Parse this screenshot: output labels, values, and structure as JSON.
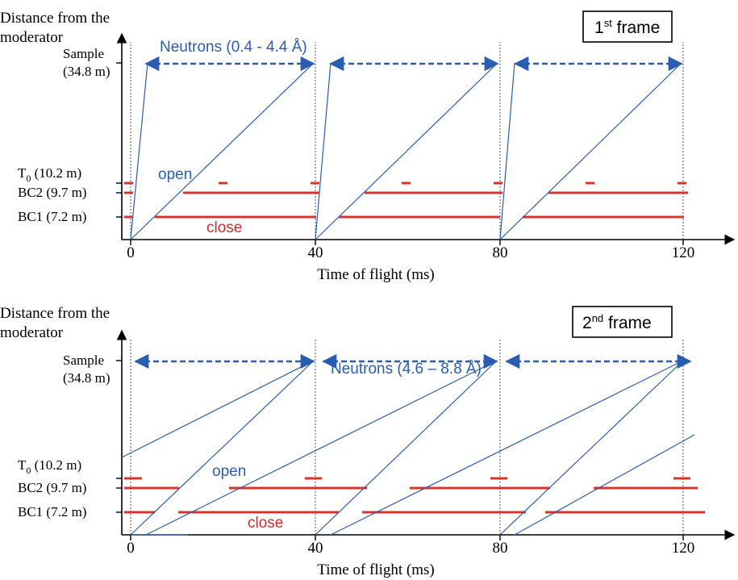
{
  "colors": {
    "blue": "#2a5db0",
    "red": "#d9342b",
    "axis": "#000000"
  },
  "panels": [
    {
      "id": "frame1",
      "frame_label": {
        "prefix": "1",
        "sup": "st",
        "suffix": " frame"
      },
      "y_title": [
        "Distance from the",
        "moderator"
      ],
      "y_labels": {
        "sample": [
          "Sample",
          "(34.8 m)"
        ],
        "t0": "T",
        "t0_sub": "0",
        "t0_rest": " (10.2 m)",
        "bc2": "BC2 (9.7 m)",
        "bc1": "BC1 (7.2 m)"
      },
      "x_ticks": [
        "0",
        "40",
        "80",
        "120"
      ],
      "x_title": "Time of flight (ms)",
      "neutron_label": "Neutrons (0.4 - 4.4 Å)",
      "open_label": "open",
      "close_label": "close"
    },
    {
      "id": "frame2",
      "frame_label": {
        "prefix": "2",
        "sup": "nd",
        "suffix": " frame"
      },
      "y_title": [
        "Distance from the",
        "moderator"
      ],
      "y_labels": {
        "sample": [
          "Sample",
          "(34.8 m)"
        ],
        "t0": "T",
        "t0_sub": "0",
        "t0_rest": " (10.2 m)",
        "bc2": "BC2 (9.7 m)",
        "bc1": "BC1 (7.2 m)"
      },
      "x_ticks": [
        "0",
        "40",
        "80",
        "120"
      ],
      "x_title": "Time of flight (ms)",
      "neutron_label": "Neutrons (4.6 – 8.8 Å)",
      "open_label": "open",
      "close_label": "close"
    }
  ]
}
